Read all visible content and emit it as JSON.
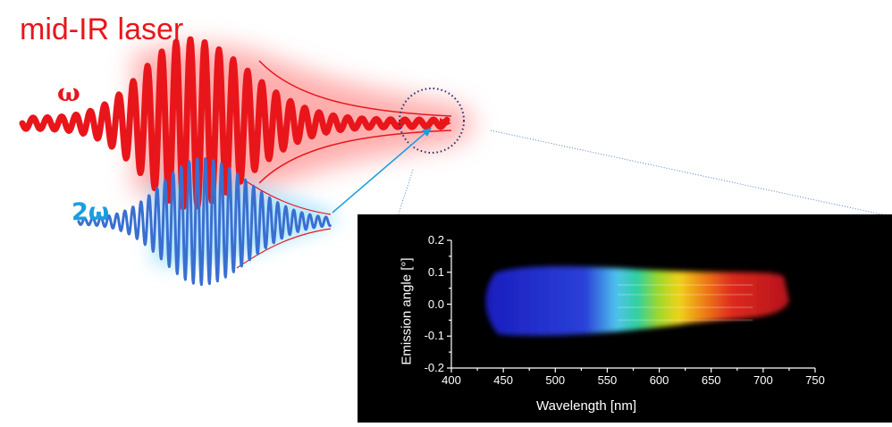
{
  "labels": {
    "laser": "mid-IR laser",
    "omega": "ω",
    "two_omega": "2ω"
  },
  "colors": {
    "laser_red": "#e8161b",
    "second_harmonic_blue": "#3a6fd0",
    "label_blue": "#1a9ee0",
    "glow_red": "#ff6b6b",
    "glow_blue": "#7fd4ff"
  },
  "chart_data": {
    "type": "heatmap",
    "title": "",
    "xlabel": "Wavelength [nm]",
    "ylabel": "Emission angle [°]",
    "xlim": [
      400,
      750
    ],
    "ylim": [
      -0.2,
      0.2
    ],
    "x_ticks": [
      "400",
      "450",
      "500",
      "550",
      "600",
      "650",
      "700",
      "750"
    ],
    "y_ticks": [
      "0.2",
      "0.1",
      "0.0",
      "-0.1",
      "-0.2"
    ],
    "emission_region": {
      "wavelength_range": [
        435,
        725
      ],
      "angle_range": [
        -0.1,
        0.12
      ]
    },
    "spectrum_colors": [
      {
        "wavelength": 440,
        "color": "#1c1fbf"
      },
      {
        "wavelength": 530,
        "color": "#2a40d8"
      },
      {
        "wavelength": 560,
        "color": "#4fc2ee"
      },
      {
        "wavelength": 580,
        "color": "#2fd0a0"
      },
      {
        "wavelength": 600,
        "color": "#9ed82a"
      },
      {
        "wavelength": 620,
        "color": "#f0d21a"
      },
      {
        "wavelength": 645,
        "color": "#ee7a18"
      },
      {
        "wavelength": 670,
        "color": "#de2a1c"
      },
      {
        "wavelength": 720,
        "color": "#b8141c"
      }
    ]
  }
}
